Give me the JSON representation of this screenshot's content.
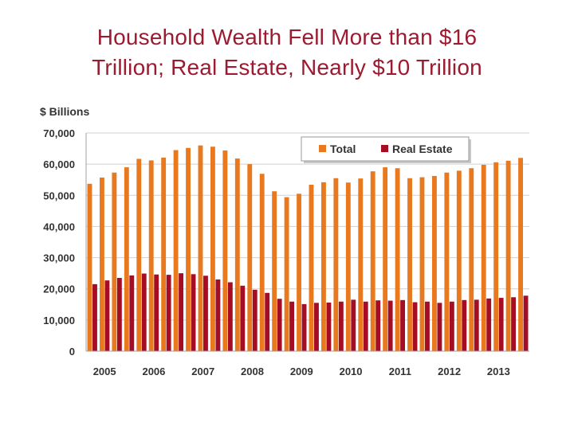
{
  "slide": {
    "title_line1": "Household Wealth Fell More than $16",
    "title_line2": "Trillion; Real Estate, Nearly $10 Trillion"
  },
  "chart_data": {
    "type": "bar",
    "ylabel": "$ Billions",
    "ylim": [
      0,
      70000
    ],
    "yticks": [
      0,
      10000,
      20000,
      30000,
      40000,
      50000,
      60000,
      70000
    ],
    "ytick_labels": [
      "0",
      "10,000",
      "20,000",
      "30,000",
      "40,000",
      "50,000",
      "60,000",
      "70,000"
    ],
    "x_labels": [
      "2005",
      "2006",
      "2007",
      "2008",
      "2009",
      "2010",
      "2011",
      "2012",
      "2013"
    ],
    "periods_per_label": 4,
    "grid": "horizontal",
    "legend_position": "top-right",
    "series": [
      {
        "name": "Total",
        "color": "#e8791e",
        "values": [
          53700,
          55700,
          57300,
          59000,
          61700,
          61200,
          62100,
          64500,
          65200,
          66000,
          65600,
          64400,
          61800,
          60000,
          56900,
          51300,
          49400,
          50500,
          53400,
          54200,
          55500,
          54100,
          55400,
          57700,
          59000,
          58700,
          55500,
          55800,
          56200,
          57300,
          57900,
          58700,
          59800,
          60600,
          61100,
          62000
        ]
      },
      {
        "name": "Real Estate",
        "color": "#a50d25",
        "values": [
          21500,
          22700,
          23500,
          24300,
          24900,
          24600,
          24500,
          25000,
          24700,
          24200,
          23000,
          22100,
          21000,
          19700,
          18700,
          16800,
          15900,
          15100,
          15500,
          15600,
          15900,
          16500,
          15900,
          16300,
          16200,
          16400,
          15700,
          15900,
          15500,
          15900,
          16400,
          16500,
          16900,
          17100,
          17300,
          17800
        ]
      }
    ]
  }
}
